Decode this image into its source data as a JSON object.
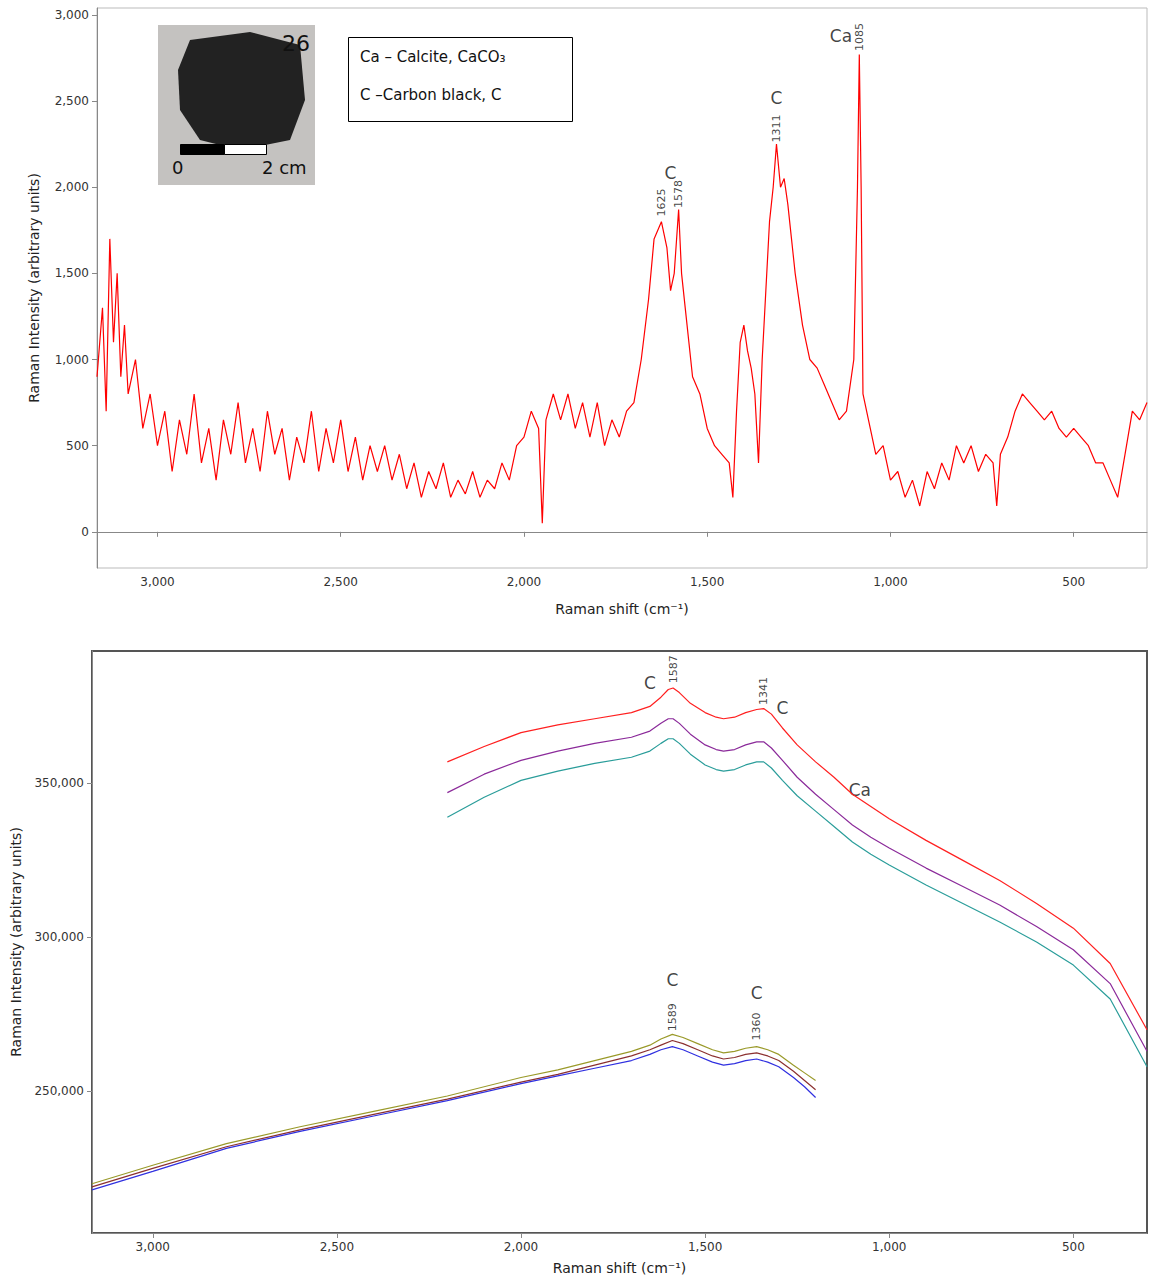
{
  "chart_data": [
    {
      "type": "line",
      "x_label": "Raman shift (cm⁻¹)",
      "y_label": "Raman Intensity (arbitrary units)",
      "xlim": [
        3165,
        300
      ],
      "ylim": [
        -210,
        3040
      ],
      "xticks": [
        3000,
        2500,
        2000,
        1500,
        1000,
        500
      ],
      "yticks": [
        0,
        500,
        1000,
        1500,
        2000,
        2500,
        3000
      ],
      "grid": false,
      "inset": {
        "label": "26",
        "scale_labels": [
          "0",
          "2 cm"
        ]
      },
      "key": [
        "Ca – Calcite, CaCO₃",
        "C –Carbon black, C"
      ],
      "series": [
        {
          "color": "#ff0000",
          "x": [
            3165,
            3150,
            3140,
            3130,
            3120,
            3110,
            3100,
            3090,
            3080,
            3060,
            3040,
            3020,
            3000,
            2980,
            2960,
            2940,
            2920,
            2900,
            2880,
            2860,
            2840,
            2820,
            2800,
            2780,
            2760,
            2740,
            2720,
            2700,
            2680,
            2660,
            2640,
            2620,
            2600,
            2580,
            2560,
            2540,
            2520,
            2500,
            2480,
            2460,
            2440,
            2420,
            2400,
            2380,
            2360,
            2340,
            2320,
            2300,
            2280,
            2260,
            2240,
            2220,
            2200,
            2180,
            2160,
            2140,
            2120,
            2100,
            2080,
            2060,
            2040,
            2020,
            2000,
            1980,
            1960,
            1950,
            1940,
            1920,
            1900,
            1880,
            1860,
            1840,
            1820,
            1800,
            1780,
            1760,
            1740,
            1720,
            1700,
            1680,
            1660,
            1645,
            1625,
            1610,
            1600,
            1590,
            1578,
            1570,
            1560,
            1550,
            1540,
            1520,
            1500,
            1480,
            1460,
            1440,
            1430,
            1420,
            1410,
            1400,
            1390,
            1380,
            1370,
            1360,
            1350,
            1340,
            1330,
            1320,
            1311,
            1300,
            1290,
            1280,
            1270,
            1260,
            1240,
            1220,
            1200,
            1180,
            1160,
            1140,
            1120,
            1100,
            1090,
            1085,
            1080,
            1075,
            1060,
            1040,
            1020,
            1000,
            980,
            960,
            940,
            920,
            900,
            880,
            860,
            840,
            820,
            800,
            780,
            760,
            740,
            720,
            710,
            700,
            680,
            660,
            640,
            620,
            600,
            580,
            560,
            540,
            520,
            500,
            480,
            460,
            440,
            420,
            400,
            380,
            360,
            340,
            320,
            300
          ],
          "values": [
            900,
            1300,
            700,
            1700,
            1100,
            1500,
            900,
            1200,
            800,
            1000,
            600,
            800,
            500,
            700,
            350,
            650,
            450,
            800,
            400,
            600,
            300,
            650,
            450,
            750,
            400,
            600,
            350,
            700,
            450,
            600,
            300,
            550,
            400,
            700,
            350,
            600,
            400,
            650,
            350,
            550,
            300,
            500,
            350,
            500,
            300,
            450,
            250,
            400,
            200,
            350,
            250,
            400,
            200,
            300,
            220,
            350,
            200,
            300,
            250,
            400,
            300,
            500,
            550,
            700,
            600,
            50,
            650,
            800,
            650,
            800,
            600,
            750,
            550,
            750,
            500,
            650,
            550,
            700,
            750,
            1000,
            1350,
            1700,
            1800,
            1650,
            1400,
            1500,
            1870,
            1500,
            1300,
            1100,
            900,
            800,
            600,
            500,
            450,
            400,
            200,
            700,
            1100,
            1200,
            1050,
            950,
            800,
            400,
            1000,
            1400,
            1800,
            2000,
            2250,
            2000,
            2050,
            1900,
            1700,
            1500,
            1200,
            1000,
            950,
            850,
            750,
            650,
            700,
            1000,
            2000,
            2770,
            2000,
            800,
            650,
            450,
            500,
            300,
            350,
            200,
            300,
            150,
            350,
            250,
            400,
            300,
            500,
            400,
            500,
            350,
            450,
            400,
            150,
            450,
            550,
            700,
            800,
            750,
            700,
            650,
            700,
            600,
            550,
            600,
            550,
            500,
            400,
            400,
            300,
            200,
            450,
            700,
            650,
            750
          ]
        }
      ],
      "annotations": [
        {
          "text": "C",
          "x": 1600,
          "y": 2080
        },
        {
          "text": "C",
          "x": 1311,
          "y": 2520
        },
        {
          "text": "Ca",
          "x": 1135,
          "y": 2880
        }
      ],
      "peak_labels": [
        {
          "value": 1625,
          "y": 1830
        },
        {
          "value": 1578,
          "y": 1880
        },
        {
          "value": 1311,
          "y": 2260
        },
        {
          "value": 1085,
          "y": 2790
        }
      ]
    },
    {
      "type": "line",
      "x_label": "Raman shift (cm⁻¹)",
      "y_label": "Raman Intensity (arbitrary units)",
      "xlim": [
        3165,
        300
      ],
      "ylim": [
        204000,
        393000
      ],
      "xticks": [
        3000,
        2500,
        2000,
        1500,
        1000,
        500
      ],
      "yticks": [
        250000,
        300000,
        350000
      ],
      "grid": false,
      "series": [
        {
          "color": "#ff2020",
          "x": [
            2200,
            2100,
            2000,
            1900,
            1800,
            1700,
            1650,
            1620,
            1600,
            1587,
            1570,
            1540,
            1500,
            1470,
            1450,
            1420,
            1390,
            1360,
            1341,
            1320,
            1290,
            1250,
            1200,
            1150,
            1100,
            1050,
            1000,
            900,
            800,
            700,
            600,
            500,
            400,
            300
          ],
          "values": [
            357000,
            362000,
            366500,
            369000,
            371000,
            373000,
            375000,
            378000,
            380500,
            381000,
            379500,
            376000,
            373000,
            371500,
            371000,
            371500,
            373000,
            374000,
            374300,
            372500,
            368000,
            362500,
            357000,
            352000,
            346500,
            342500,
            338500,
            331500,
            325000,
            318500,
            311000,
            303000,
            291500,
            270000
          ]
        },
        {
          "color": "#8b2a9a",
          "x": [
            2200,
            2100,
            2000,
            1900,
            1800,
            1700,
            1650,
            1620,
            1600,
            1587,
            1570,
            1540,
            1500,
            1470,
            1450,
            1420,
            1390,
            1360,
            1341,
            1320,
            1290,
            1250,
            1200,
            1150,
            1100,
            1050,
            1000,
            900,
            800,
            700,
            600,
            500,
            400,
            300
          ],
          "values": [
            347000,
            353000,
            357500,
            360500,
            363000,
            365000,
            367000,
            369500,
            371000,
            371000,
            369500,
            366000,
            362500,
            361000,
            360500,
            361000,
            362500,
            363500,
            363500,
            361500,
            357500,
            352000,
            346500,
            341500,
            336500,
            332500,
            329000,
            322500,
            316500,
            310500,
            303500,
            296000,
            285000,
            263000
          ]
        },
        {
          "color": "#2a9d9a",
          "x": [
            2200,
            2100,
            2000,
            1900,
            1800,
            1700,
            1650,
            1620,
            1600,
            1587,
            1570,
            1540,
            1500,
            1470,
            1450,
            1420,
            1390,
            1360,
            1341,
            1320,
            1290,
            1250,
            1200,
            1150,
            1100,
            1050,
            1000,
            900,
            800,
            700,
            600,
            500,
            400,
            300
          ],
          "values": [
            339000,
            345500,
            351000,
            354000,
            356500,
            358500,
            360500,
            363000,
            364500,
            364500,
            363000,
            359500,
            356000,
            354500,
            354000,
            354500,
            356000,
            357000,
            357000,
            355000,
            351000,
            346000,
            341000,
            336000,
            331000,
            327000,
            323500,
            317000,
            311000,
            305000,
            298500,
            291000,
            280000,
            258000
          ]
        },
        {
          "color": "#9a9a2a",
          "x": [
            3165,
            3000,
            2800,
            2600,
            2400,
            2200,
            2000,
            1900,
            1800,
            1700,
            1650,
            1620,
            1589,
            1560,
            1520,
            1480,
            1450,
            1420,
            1390,
            1360,
            1330,
            1300,
            1260,
            1230,
            1200
          ],
          "values": [
            220000,
            226000,
            233000,
            238500,
            243500,
            248500,
            254500,
            257000,
            260000,
            263000,
            265000,
            267000,
            268500,
            267500,
            265500,
            263500,
            262500,
            263000,
            264000,
            264500,
            263500,
            262000,
            258500,
            256000,
            253500
          ]
        },
        {
          "color": "#8b3030",
          "x": [
            3165,
            3000,
            2800,
            2600,
            2400,
            2200,
            2000,
            1900,
            1800,
            1700,
            1650,
            1620,
            1589,
            1560,
            1520,
            1480,
            1450,
            1420,
            1390,
            1360,
            1330,
            1300,
            1260,
            1230,
            1200
          ],
          "values": [
            219000,
            225000,
            232000,
            237500,
            242500,
            247500,
            253000,
            255500,
            258500,
            261500,
            263500,
            265000,
            266500,
            265500,
            263500,
            261500,
            260500,
            261000,
            262000,
            262500,
            261500,
            260000,
            256500,
            253500,
            250500
          ]
        },
        {
          "color": "#3030e0",
          "x": [
            3165,
            3000,
            2800,
            2600,
            2400,
            2200,
            2000,
            1900,
            1800,
            1700,
            1650,
            1620,
            1589,
            1560,
            1520,
            1480,
            1450,
            1420,
            1390,
            1360,
            1330,
            1300,
            1260,
            1230,
            1200
          ],
          "values": [
            218000,
            224000,
            231500,
            237000,
            242000,
            247000,
            252500,
            255000,
            257500,
            260000,
            262000,
            263500,
            264500,
            263500,
            261500,
            259500,
            258500,
            259000,
            260000,
            260500,
            259500,
            258000,
            254500,
            251500,
            248000
          ]
        }
      ],
      "annotations": [
        {
          "text": "C",
          "x": 1650,
          "y": 382500
        },
        {
          "text": "C",
          "x": 1290,
          "y": 374500
        },
        {
          "text": "Ca",
          "x": 1080,
          "y": 348000
        },
        {
          "text": "C",
          "x": 1589,
          "y": 286000
        },
        {
          "text": "C",
          "x": 1360,
          "y": 282000
        }
      ],
      "peak_labels": [
        {
          "value": 1587,
          "y": 382500
        },
        {
          "value": 1341,
          "y": 375500
        },
        {
          "value": 1589,
          "y": 269500
        },
        {
          "value": 1360,
          "y": 266500
        }
      ]
    }
  ]
}
